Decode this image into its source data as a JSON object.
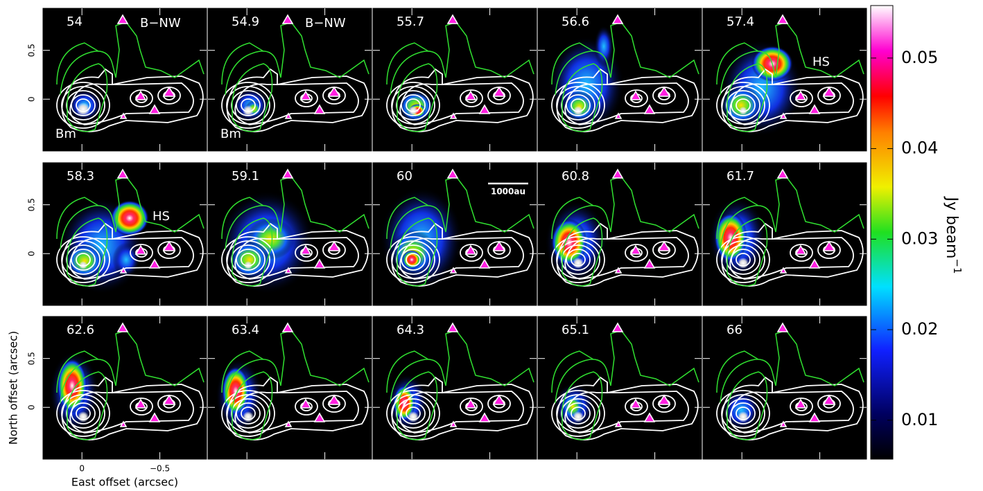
{
  "chart_data": {
    "type": "channel-maps",
    "panels": [
      {
        "label": "54",
        "annotations": [
          "B−NW",
          "Bm"
        ]
      },
      {
        "label": "54.9",
        "annotations": [
          "B−NW",
          "Bm"
        ]
      },
      {
        "label": "55.7",
        "annotations": []
      },
      {
        "label": "56.6",
        "annotations": []
      },
      {
        "label": "57.4",
        "annotations": [
          "HS"
        ]
      },
      {
        "label": "58.3",
        "annotations": [
          "HS"
        ]
      },
      {
        "label": "59.1",
        "annotations": []
      },
      {
        "label": "60",
        "annotations": [
          "1000au"
        ]
      },
      {
        "label": "60.8",
        "annotations": []
      },
      {
        "label": "61.7",
        "annotations": []
      },
      {
        "label": "62.6",
        "annotations": []
      },
      {
        "label": "63.4",
        "annotations": []
      },
      {
        "label": "64.3",
        "annotations": []
      },
      {
        "label": "65.1",
        "annotations": []
      },
      {
        "label": "66",
        "annotations": []
      }
    ],
    "xlabel": "East offset (arcsec)",
    "ylabel": "North offset (arcsec)",
    "xlim": [
      0.25,
      -0.8
    ],
    "ylim": [
      -0.53,
      0.93
    ],
    "xticks": [
      0,
      {
        "value": -0.5,
        "label": "−0.5"
      }
    ],
    "yticks": [
      0,
      0.5
    ],
    "colorbar": {
      "label": "Jy beam",
      "label_sup": "−1",
      "lim": [
        0.0057,
        0.0558
      ],
      "ticks": [
        0.01,
        0.02,
        0.03,
        0.04,
        0.05
      ]
    }
  }
}
